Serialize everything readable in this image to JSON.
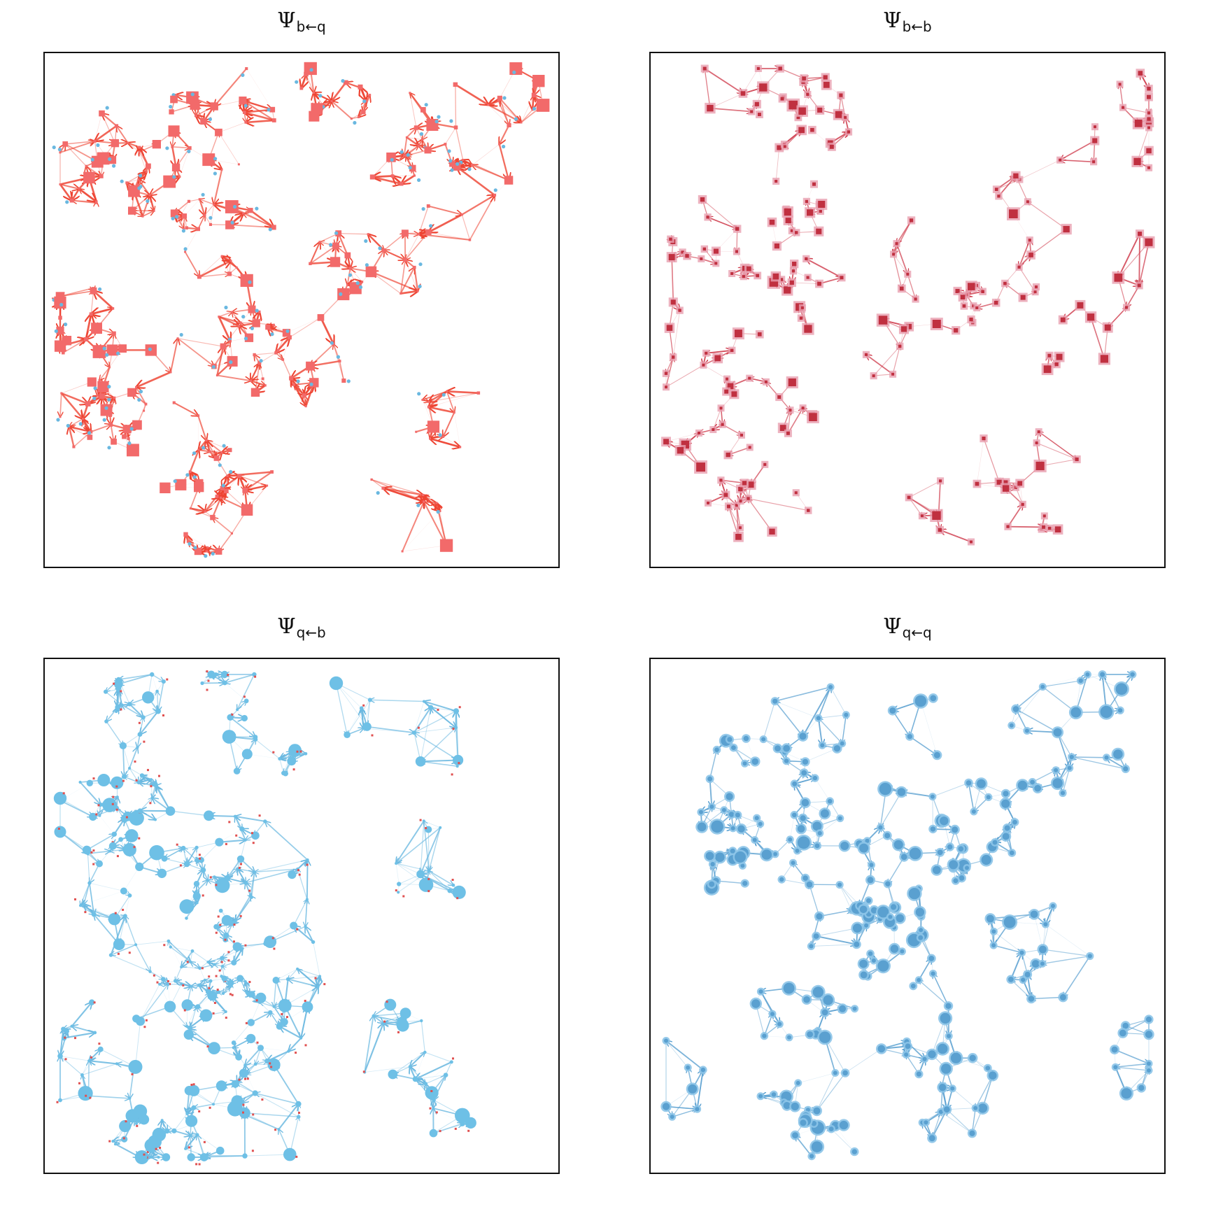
{
  "panels": [
    {
      "id": "b_from_q",
      "title_symbol": "Ψ",
      "title_subscript": "b←q",
      "edge_color": "#ee4433",
      "source_color": "#6ab8e0",
      "target_color": "#f26a6a",
      "style": "red-square-arrows"
    },
    {
      "id": "b_from_b",
      "title_symbol": "Ψ",
      "title_subscript": "b←b",
      "edge_color": "#d04050",
      "source_color": "#e8a0b0",
      "target_color": "#c03040",
      "style": "crimson-squares"
    },
    {
      "id": "q_from_b",
      "title_symbol": "Ψ",
      "title_subscript": "q←b",
      "edge_color": "#6ab8e0",
      "source_color": "#e05050",
      "target_color": "#6ec0e6",
      "style": "light-blue-circles"
    },
    {
      "id": "q_from_q",
      "title_symbol": "Ψ",
      "title_subscript": "q←q",
      "edge_color": "#5aa0d0",
      "source_color": "#5aa0d0",
      "target_color": "#5aa0d0",
      "style": "blue-circles"
    }
  ]
}
